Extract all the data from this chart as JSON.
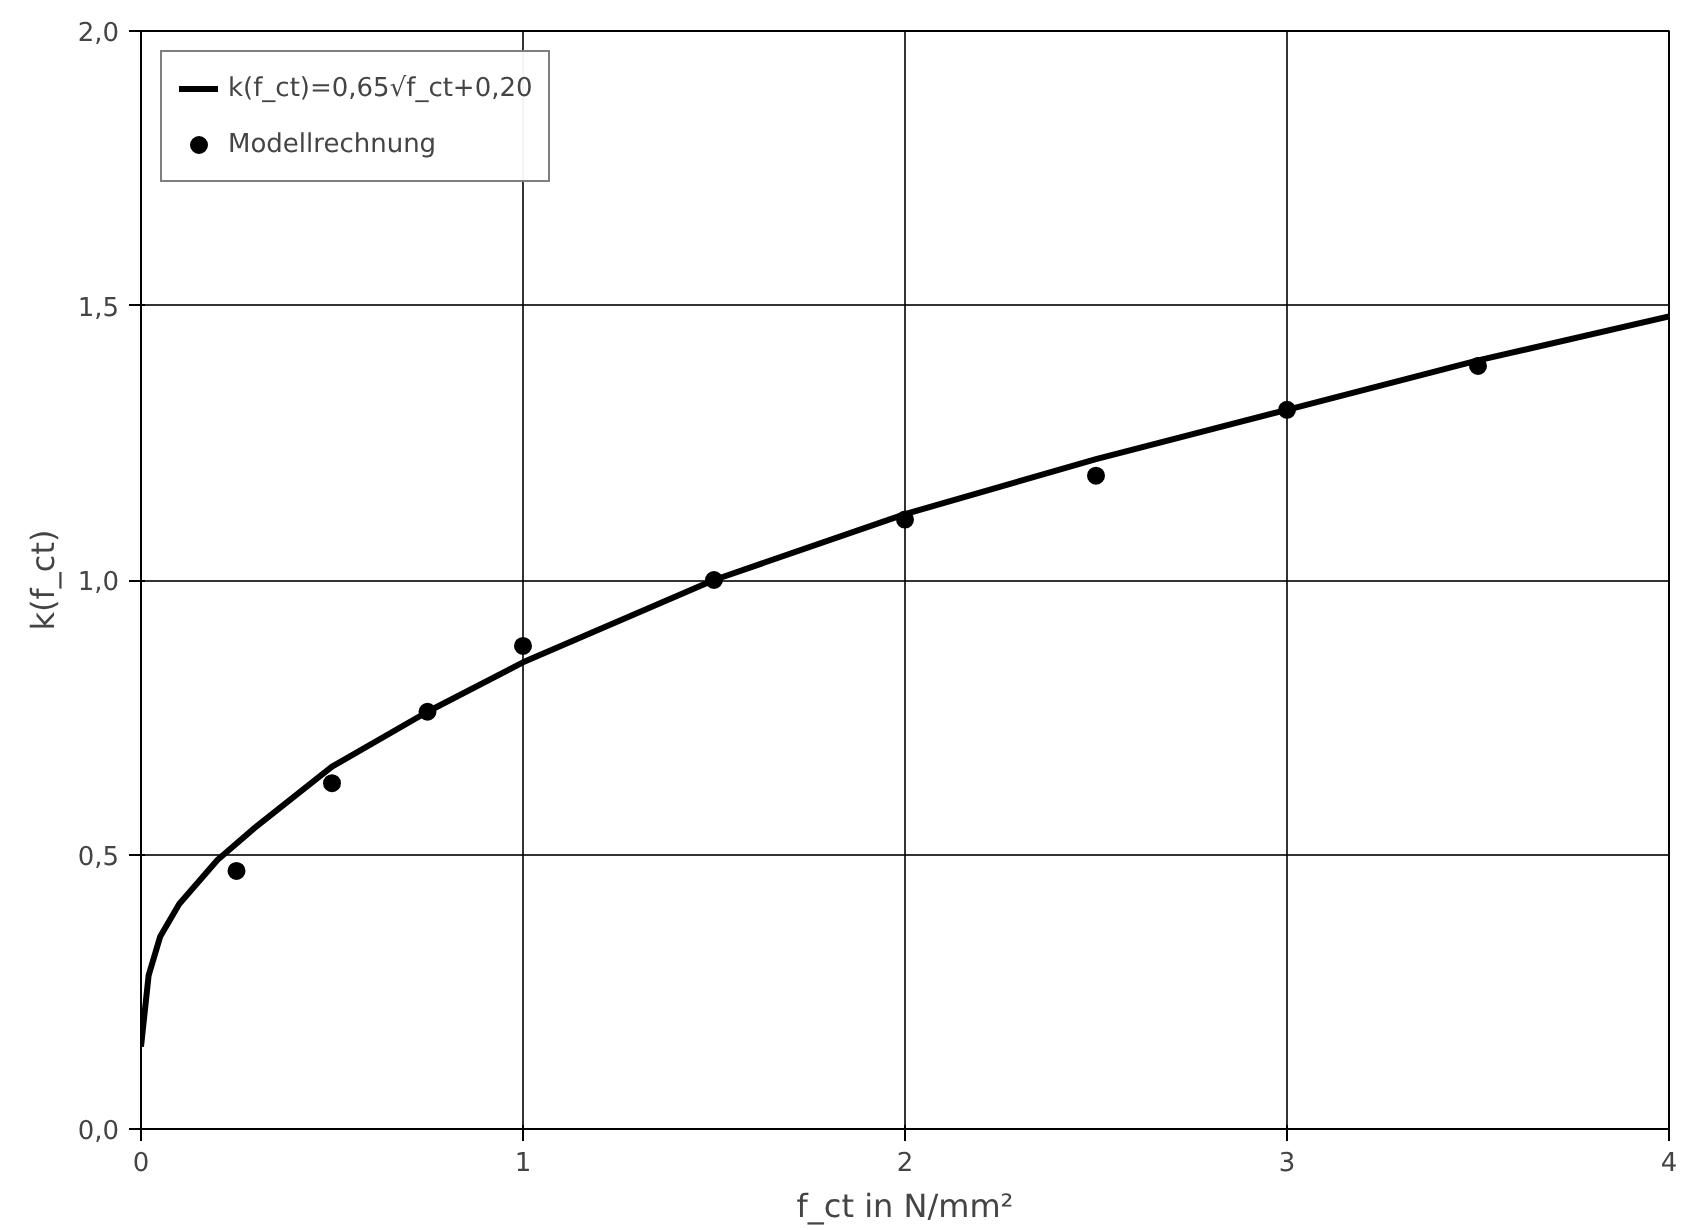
{
  "chart_data": {
    "type": "line",
    "xlabel": "f_ct in N/mm²",
    "ylabel": "k(f_ct)",
    "xlim": [
      0,
      4
    ],
    "ylim": [
      0,
      2
    ],
    "xticks": [
      0,
      1,
      2,
      3,
      4
    ],
    "yticks": [
      {
        "value": 0,
        "label": "0,0"
      },
      {
        "value": 0.5,
        "label": "0,5"
      },
      {
        "value": 1,
        "label": "1,0"
      },
      {
        "value": 1.5,
        "label": "1,5"
      },
      {
        "value": 2,
        "label": "2,0"
      }
    ],
    "grid": true,
    "legend": "top left",
    "series": [
      {
        "name": "k(f_ct)=0,65√f_ct+0,20",
        "color": "#000000",
        "marker": "none",
        "line_style": "solid",
        "x": [
          0,
          0.02,
          0.05,
          0.1,
          0.2,
          0.3,
          0.5,
          0.75,
          1,
          1.5,
          2,
          2.5,
          3,
          3.5,
          4
        ],
        "values": [
          0.15,
          0.28,
          0.35,
          0.41,
          0.49,
          0.55,
          0.66,
          0.76,
          0.85,
          1.0,
          1.12,
          1.22,
          1.31,
          1.4,
          1.48
        ]
      },
      {
        "name": "Modellrechnung",
        "type": "scatter",
        "color": "#000000",
        "marker": "circle",
        "x": [
          0.25,
          0.5,
          0.75,
          1,
          1.5,
          2,
          2.5,
          3,
          3.5
        ],
        "values": [
          0.47,
          0.63,
          0.76,
          0.88,
          1.0,
          1.11,
          1.19,
          1.31,
          1.39
        ]
      }
    ]
  }
}
